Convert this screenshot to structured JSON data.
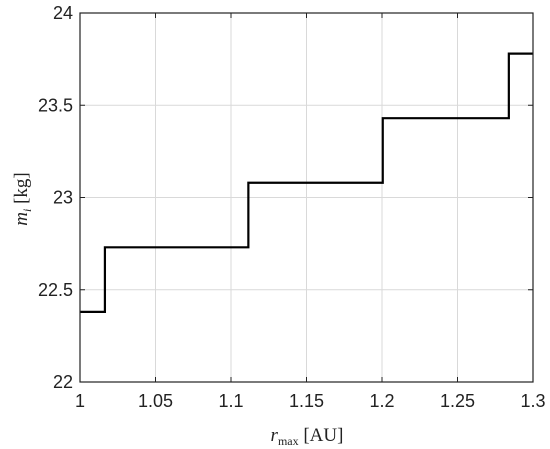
{
  "chart_data": {
    "type": "line",
    "line_style": "step",
    "grid": true,
    "xlim": [
      1,
      1.3
    ],
    "ylim": [
      22,
      24
    ],
    "x_ticks": [
      1,
      1.05,
      1.1,
      1.15,
      1.2,
      1.25,
      1.3
    ],
    "x_tick_labels": [
      "1",
      "1.05",
      "1.1",
      "1.15",
      "1.2",
      "1.25",
      "1.3"
    ],
    "y_ticks": [
      22,
      22.5,
      23,
      23.5,
      24
    ],
    "y_tick_labels": [
      "22",
      "22.5",
      "23",
      "23.5",
      "24"
    ],
    "xlabel": {
      "symbol": "r",
      "subscript": "max",
      "unit": "[AU]"
    },
    "ylabel": {
      "symbol": "m",
      "subscript": "i",
      "unit": "[kg]"
    },
    "series": [
      {
        "color": "#000000",
        "x": [
          1.0,
          1.0165,
          1.0165,
          1.1115,
          1.1115,
          1.2005,
          1.2005,
          1.284,
          1.284,
          1.3
        ],
        "y": [
          22.38,
          22.38,
          22.73,
          22.73,
          23.08,
          23.08,
          23.43,
          23.43,
          23.78,
          23.78
        ]
      }
    ]
  }
}
